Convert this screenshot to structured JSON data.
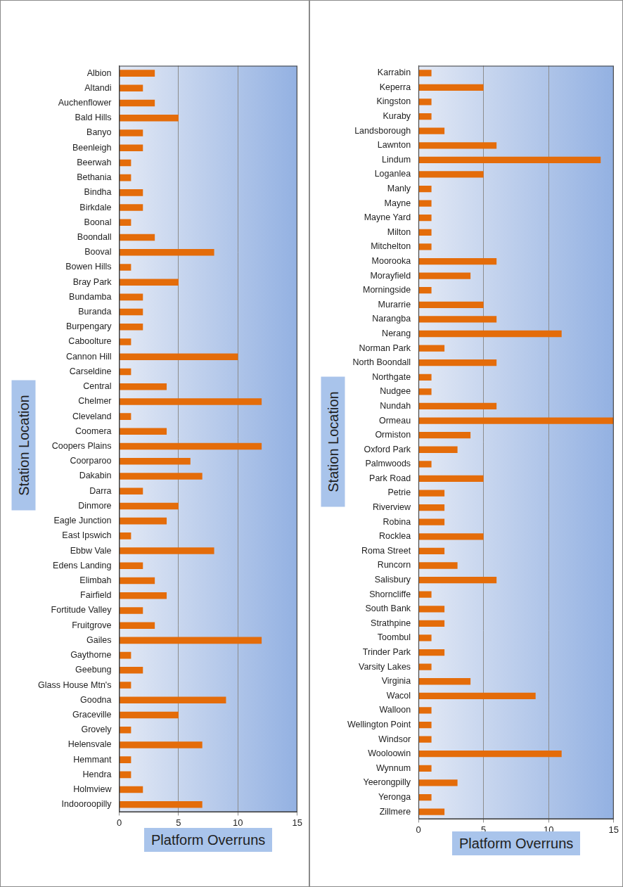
{
  "chart_data": [
    {
      "type": "bar",
      "orientation": "horizontal",
      "color": "#e46c0a",
      "grid": true,
      "x_label": "Platform Overruns",
      "y_label": "Station Location",
      "xlim": [
        0,
        15
      ],
      "xticks": [
        0,
        5,
        10,
        15
      ],
      "categories": [
        "Albion",
        "Altandi",
        "Auchenflower",
        "Bald Hills",
        "Banyo",
        "Beenleigh",
        "Beerwah",
        "Bethania",
        "Bindha",
        "Birkdale",
        "Boonal",
        "Boondall",
        "Booval",
        "Bowen Hills",
        "Bray Park",
        "Bundamba",
        "Buranda",
        "Burpengary",
        "Caboolture",
        "Cannon Hill",
        "Carseldine",
        "Central",
        "Chelmer",
        "Cleveland",
        "Coomera",
        "Coopers Plains",
        "Coorparoo",
        "Dakabin",
        "Darra",
        "Dinmore",
        "Eagle Junction",
        "East Ipswich",
        "Ebbw Vale",
        "Edens Landing",
        "Elimbah",
        "Fairfield",
        "Fortitude Valley",
        "Fruitgrove",
        "Gailes",
        "Gaythorne",
        "Geebung",
        "Glass House Mtn's",
        "Goodna",
        "Graceville",
        "Grovely",
        "Helensvale",
        "Hemmant",
        "Hendra",
        "Holmview",
        "Indooroopilly"
      ],
      "values": [
        3,
        2,
        3,
        5,
        2,
        2,
        1,
        1,
        2,
        2,
        1,
        3,
        8,
        1,
        5,
        2,
        2,
        2,
        1,
        10,
        1,
        4,
        12,
        1,
        4,
        12,
        6,
        7,
        2,
        5,
        4,
        1,
        8,
        2,
        3,
        4,
        2,
        3,
        12,
        1,
        2,
        1,
        9,
        5,
        1,
        7,
        1,
        1,
        2,
        7
      ]
    },
    {
      "type": "bar",
      "orientation": "horizontal",
      "color": "#e46c0a",
      "grid": true,
      "x_label": "Platform Overruns",
      "y_label": "Station Location",
      "xlim": [
        0,
        15
      ],
      "xticks": [
        0,
        5,
        10,
        15
      ],
      "categories": [
        "Karrabin",
        "Keperra",
        "Kingston",
        "Kuraby",
        "Landsborough",
        "Lawnton",
        "Lindum",
        "Loganlea",
        "Manly",
        "Mayne",
        "Mayne Yard",
        "Milton",
        "Mitchelton",
        "Moorooka",
        "Morayfield",
        "Morningside",
        "Murarrie",
        "Narangba",
        "Nerang",
        "Norman Park",
        "North Boondall",
        "Northgate",
        "Nudgee",
        "Nundah",
        "Ormeau",
        "Ormiston",
        "Oxford Park",
        "Palmwoods",
        "Park Road",
        "Petrie",
        "Riverview",
        "Robina",
        "Rocklea",
        "Roma Street",
        "Runcorn",
        "Salisbury",
        "Shorncliffe",
        "South Bank",
        "Strathpine",
        "Toombul",
        "Trinder Park",
        "Varsity Lakes",
        "Virginia",
        "Wacol",
        "Walloon",
        "Wellington Point",
        "Windsor",
        "Wooloowin",
        "Wynnum",
        "Yeerongpilly",
        "Yeronga",
        "Zillmere"
      ],
      "values": [
        1,
        5,
        1,
        1,
        2,
        6,
        14,
        5,
        1,
        1,
        1,
        1,
        1,
        6,
        4,
        1,
        5,
        6,
        11,
        2,
        6,
        1,
        1,
        6,
        15,
        4,
        3,
        1,
        5,
        2,
        2,
        2,
        5,
        2,
        3,
        6,
        1,
        2,
        2,
        1,
        2,
        1,
        4,
        9,
        1,
        1,
        1,
        11,
        1,
        3,
        1,
        2
      ]
    }
  ]
}
